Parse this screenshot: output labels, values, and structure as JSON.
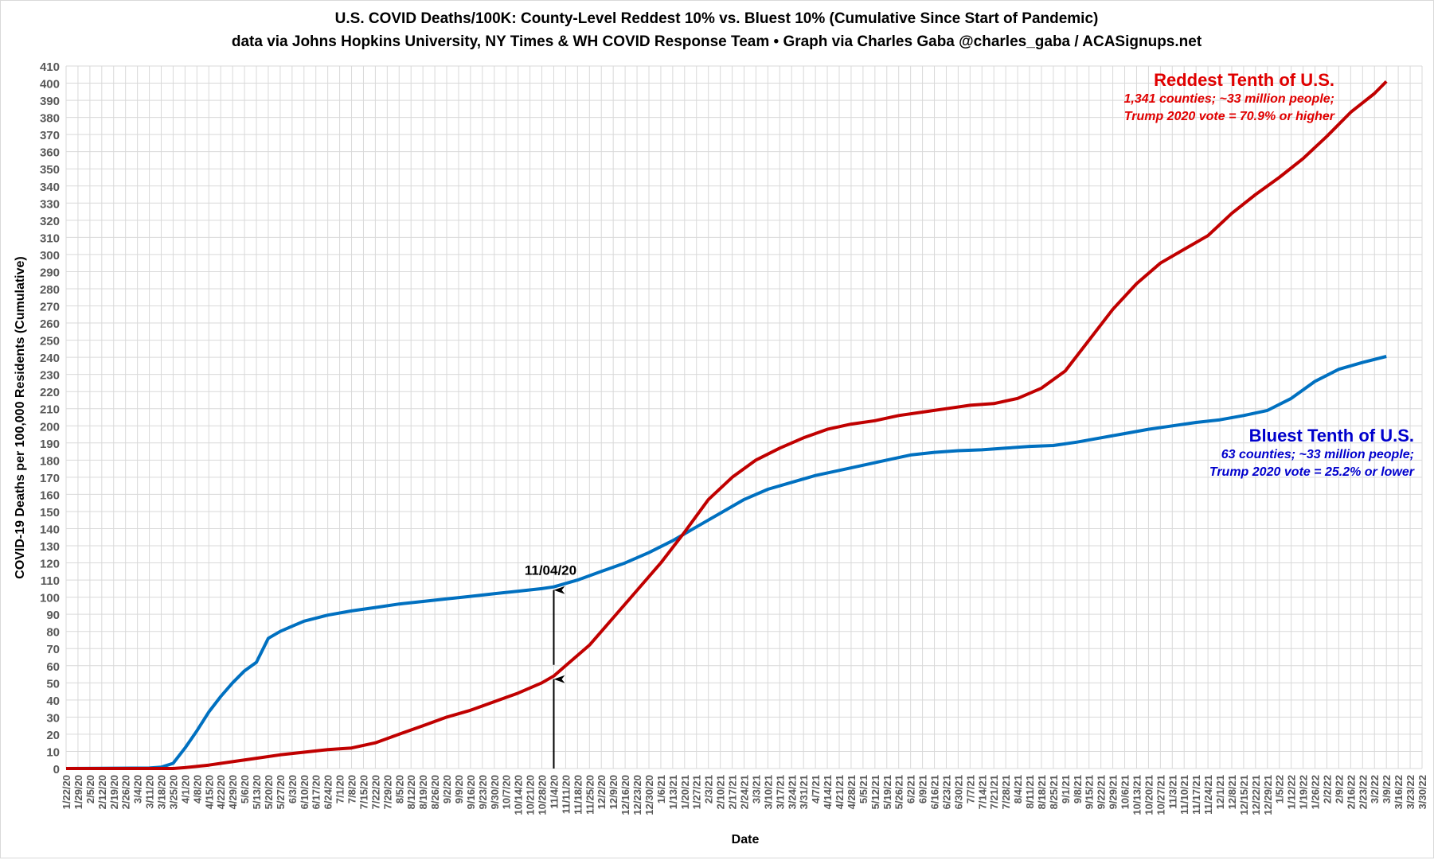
{
  "chart_data": {
    "type": "line",
    "title": "U.S. COVID Deaths/100K: County-Level Reddest 10% vs. Bluest 10% (Cumulative Since Start of Pandemic)",
    "subtitle": "data via Johns Hopkins University, NY Times & WH COVID Response Team • Graph via Charles Gaba @charles_gaba / ACASignups.net",
    "xlabel": "Date",
    "ylabel": "COVID-19 Deaths per 100,000 Residents (Cumulative)",
    "ylim": [
      0,
      410
    ],
    "ytick_step": 10,
    "grid": true,
    "categories": [
      "1/22/20",
      "1/29/20",
      "2/5/20",
      "2/12/20",
      "2/19/20",
      "2/26/20",
      "3/4/20",
      "3/11/20",
      "3/18/20",
      "3/25/20",
      "4/1/20",
      "4/8/20",
      "4/15/20",
      "4/22/20",
      "4/29/20",
      "5/6/20",
      "5/13/20",
      "5/20/20",
      "5/27/20",
      "6/3/20",
      "6/10/20",
      "6/17/20",
      "6/24/20",
      "7/1/20",
      "7/8/20",
      "7/15/20",
      "7/22/20",
      "7/29/20",
      "8/5/20",
      "8/12/20",
      "8/19/20",
      "8/26/20",
      "9/2/20",
      "9/9/20",
      "9/16/20",
      "9/23/20",
      "9/30/20",
      "10/7/20",
      "10/14/20",
      "10/21/20",
      "10/28/20",
      "11/4/20",
      "11/11/20",
      "11/18/20",
      "11/25/20",
      "12/2/20",
      "12/9/20",
      "12/16/20",
      "12/23/20",
      "12/30/20",
      "1/6/21",
      "1/13/21",
      "1/20/21",
      "1/27/21",
      "2/3/21",
      "2/10/21",
      "2/17/21",
      "2/24/21",
      "3/3/21",
      "3/10/21",
      "3/17/21",
      "3/24/21",
      "3/31/21",
      "4/7/21",
      "4/14/21",
      "4/21/21",
      "4/28/21",
      "5/5/21",
      "5/12/21",
      "5/19/21",
      "5/26/21",
      "6/2/21",
      "6/9/21",
      "6/16/21",
      "6/23/21",
      "6/30/21",
      "7/7/21",
      "7/14/21",
      "7/21/21",
      "7/28/21",
      "8/4/21",
      "8/11/21",
      "8/18/21",
      "8/25/21",
      "9/1/21",
      "9/8/21",
      "9/15/21",
      "9/22/21",
      "9/29/21",
      "10/6/21",
      "10/13/21",
      "10/20/21",
      "10/27/21",
      "11/3/21",
      "11/10/21",
      "11/17/21",
      "11/24/21",
      "12/1/21",
      "12/8/21",
      "12/15/21",
      "12/22/21",
      "12/29/21",
      "1/5/22",
      "1/12/22",
      "1/19/22",
      "1/26/22",
      "2/2/22",
      "2/9/22",
      "2/16/22",
      "2/23/22",
      "3/2/22",
      "3/9/22",
      "3/16/22",
      "3/23/22",
      "3/30/22"
    ],
    "series": [
      {
        "key": "red",
        "color": "#c00000",
        "x": [
          "1/22/20",
          "3/25/20",
          "4/1/20",
          "4/15/20",
          "4/29/20",
          "5/13/20",
          "5/27/20",
          "6/10/20",
          "6/24/20",
          "7/8/20",
          "7/22/20",
          "8/5/20",
          "8/19/20",
          "9/2/20",
          "9/16/20",
          "9/30/20",
          "10/14/20",
          "10/28/20",
          "11/4/20",
          "11/11/20",
          "11/25/20",
          "12/9/20",
          "12/23/20",
          "1/6/21",
          "1/20/21",
          "2/3/21",
          "2/17/21",
          "3/3/21",
          "3/17/21",
          "3/31/21",
          "4/14/21",
          "4/28/21",
          "5/12/21",
          "5/26/21",
          "6/9/21",
          "6/23/21",
          "7/7/21",
          "7/21/21",
          "8/4/21",
          "8/18/21",
          "9/1/21",
          "9/15/21",
          "9/29/21",
          "10/13/21",
          "10/27/21",
          "11/10/21",
          "11/24/21",
          "12/8/21",
          "12/22/21",
          "1/5/22",
          "1/19/22",
          "2/2/22",
          "2/16/22",
          "3/2/22",
          "3/9/22"
        ],
        "y": [
          0,
          0,
          0.5,
          2,
          4,
          6,
          8,
          9.5,
          11,
          12,
          15,
          20,
          25,
          30,
          34,
          39,
          44,
          50,
          54,
          60,
          72,
          88,
          104,
          120,
          138,
          157,
          170,
          180,
          187,
          193,
          198,
          201,
          203,
          206,
          208,
          210,
          212,
          213,
          216,
          222,
          232,
          250,
          268,
          283,
          295,
          303,
          311,
          324,
          335,
          345,
          356,
          369,
          383,
          394,
          401
        ]
      },
      {
        "key": "blue",
        "color": "#0070c0",
        "x": [
          "1/22/20",
          "3/11/20",
          "3/18/20",
          "3/25/20",
          "4/1/20",
          "4/8/20",
          "4/15/20",
          "4/22/20",
          "4/29/20",
          "5/6/20",
          "5/13/20",
          "5/20/20",
          "5/27/20",
          "6/3/20",
          "6/10/20",
          "6/24/20",
          "7/8/20",
          "7/22/20",
          "8/5/20",
          "8/19/20",
          "9/2/20",
          "9/16/20",
          "9/30/20",
          "10/14/20",
          "10/28/20",
          "11/4/20",
          "11/18/20",
          "12/2/20",
          "12/16/20",
          "12/30/20",
          "1/13/21",
          "1/27/21",
          "2/10/21",
          "2/24/21",
          "3/10/21",
          "3/24/21",
          "4/7/21",
          "4/21/21",
          "5/5/21",
          "5/19/21",
          "6/2/21",
          "6/16/21",
          "6/30/21",
          "7/14/21",
          "7/28/21",
          "8/11/21",
          "8/25/21",
          "9/8/21",
          "9/22/21",
          "10/6/21",
          "10/20/21",
          "11/3/21",
          "11/17/21",
          "12/1/21",
          "12/15/21",
          "12/29/21",
          "1/12/22",
          "1/26/22",
          "2/9/22",
          "2/23/22",
          "3/9/22"
        ],
        "y": [
          0,
          0.3,
          0.8,
          3,
          12,
          22,
          33,
          42,
          50,
          57,
          62,
          76,
          80,
          83,
          86,
          89.5,
          92,
          94,
          96,
          97.5,
          99,
          100.5,
          102,
          103.5,
          105,
          106,
          110,
          115,
          120,
          126,
          133,
          141,
          149,
          157,
          163,
          167,
          171,
          174,
          177,
          180,
          183,
          184.5,
          185.5,
          186,
          187,
          188,
          188.5,
          190.5,
          193,
          195.5,
          198,
          200,
          202,
          203.5,
          206,
          209,
          216,
          226,
          233,
          237,
          240.5
        ]
      }
    ],
    "annotations": {
      "date_label": "11/04/20",
      "date": "11/4/20",
      "red_at_date": 54,
      "blue_at_date": 106,
      "red_legend": {
        "title": "Reddest Tenth of U.S.",
        "line1": "1,341 counties; ~33 million people;",
        "line2": "Trump 2020 vote = 70.9% or higher"
      },
      "blue_legend": {
        "title": "Bluest Tenth of U.S.",
        "line1": "63 counties; ~33 million people;",
        "line2": "Trump 2020 vote = 25.2% or lower"
      },
      "legend_colors": {
        "red": "#e00000",
        "blue": "#0000cc"
      }
    }
  }
}
